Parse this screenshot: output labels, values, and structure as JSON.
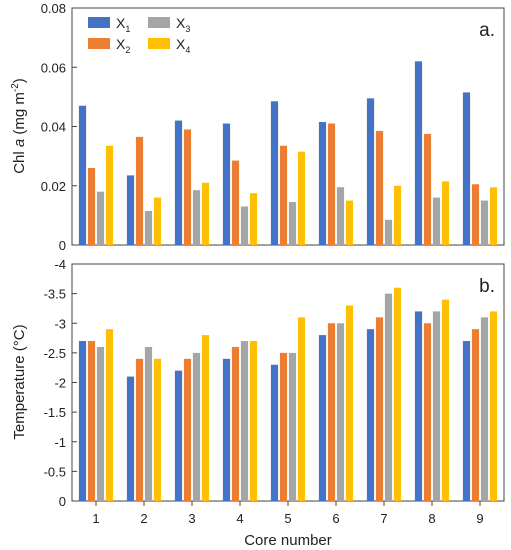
{
  "colors": {
    "x1": "#4472C4",
    "x2": "#ED7D31",
    "x3": "#A5A5A5",
    "x4": "#FFC000",
    "axis": "#444444"
  },
  "chart_data": [
    {
      "type": "bar",
      "panel_label": "a.",
      "ylabel_prefix": "Chl ",
      "ylabel_italic": "a",
      "ylabel_unit": " (mg m",
      "ylabel_sup": "-2",
      "ylabel_end": ")",
      "ylim": [
        0,
        0.08
      ],
      "yticks": [
        "0",
        "0.02",
        "0.04",
        "0.06",
        "0.08"
      ],
      "ytick_values": [
        0,
        0.02,
        0.04,
        0.06,
        0.08
      ],
      "categories": [
        "1",
        "2",
        "3",
        "4",
        "5",
        "6",
        "7",
        "8",
        "9"
      ],
      "legend": {
        "placement": "top-left",
        "columns": 2
      },
      "series": [
        {
          "name": "X",
          "sub": "1",
          "color_key": "x1",
          "values": [
            0.047,
            0.0235,
            0.042,
            0.041,
            0.0485,
            0.0415,
            0.0495,
            0.062,
            0.0515
          ]
        },
        {
          "name": "X",
          "sub": "2",
          "color_key": "x2",
          "values": [
            0.026,
            0.0365,
            0.039,
            0.0285,
            0.0335,
            0.041,
            0.0385,
            0.0375,
            0.0205
          ]
        },
        {
          "name": "X",
          "sub": "3",
          "color_key": "x3",
          "values": [
            0.018,
            0.0115,
            0.0185,
            0.013,
            0.0145,
            0.0195,
            0.0085,
            0.016,
            0.015
          ]
        },
        {
          "name": "X",
          "sub": "4",
          "color_key": "x4",
          "values": [
            0.0335,
            0.016,
            0.021,
            0.0175,
            0.0315,
            0.015,
            0.02,
            0.0215,
            0.0195
          ]
        }
      ]
    },
    {
      "type": "bar",
      "panel_label": "b.",
      "ylabel": "Temperature (°C)",
      "ylim": [
        0,
        -4
      ],
      "yticks": [
        "0",
        "-0.5",
        "-1",
        "-1.5",
        "-2",
        "-2.5",
        "-3",
        "-3.5",
        "-4"
      ],
      "ytick_values": [
        0,
        -0.5,
        -1,
        -1.5,
        -2,
        -2.5,
        -3,
        -3.5,
        -4
      ],
      "xlabel": "Core number",
      "categories": [
        "1",
        "2",
        "3",
        "4",
        "5",
        "6",
        "7",
        "8",
        "9"
      ],
      "series": [
        {
          "color_key": "x1",
          "values": [
            -2.7,
            -2.1,
            -2.2,
            -2.4,
            -2.3,
            -2.8,
            -2.9,
            -3.2,
            -2.7
          ]
        },
        {
          "color_key": "x2",
          "values": [
            -2.7,
            -2.4,
            -2.4,
            -2.6,
            -2.5,
            -3.0,
            -3.1,
            -3.0,
            -2.9
          ]
        },
        {
          "color_key": "x3",
          "values": [
            -2.6,
            -2.6,
            -2.5,
            -2.7,
            -2.5,
            -3.0,
            -3.5,
            -3.2,
            -3.1
          ]
        },
        {
          "color_key": "x4",
          "values": [
            -2.9,
            -2.4,
            -2.8,
            -2.7,
            -3.1,
            -3.3,
            -3.6,
            -3.4,
            -3.2
          ]
        }
      ]
    }
  ]
}
